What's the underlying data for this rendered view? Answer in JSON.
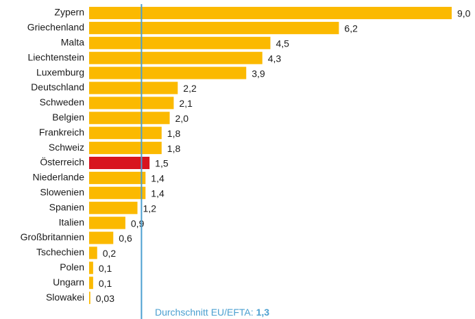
{
  "chart_data": {
    "type": "bar",
    "orientation": "horizontal",
    "categories": [
      "Zypern",
      "Griechenland",
      "Malta",
      "Liechtenstein",
      "Luxemburg",
      "Deutschland",
      "Schweden",
      "Belgien",
      "Frankreich",
      "Schweiz",
      "Österreich",
      "Niederlande",
      "Slowenien",
      "Spanien",
      "Italien",
      "Großbritannien",
      "Tschechien",
      "Polen",
      "Ungarn",
      "Slowakei"
    ],
    "values": [
      9.0,
      6.2,
      4.5,
      4.3,
      3.9,
      2.2,
      2.1,
      2.0,
      1.8,
      1.8,
      1.5,
      1.4,
      1.4,
      1.2,
      0.9,
      0.6,
      0.2,
      0.1,
      0.1,
      0.03
    ],
    "value_labels": [
      "9,0",
      "6,2",
      "4,5",
      "4,3",
      "3,9",
      "2,2",
      "2,1",
      "2,0",
      "1,8",
      "1,8",
      "1,5",
      "1,4",
      "1,4",
      "1,2",
      "0,9",
      "0,6",
      "0,2",
      "0,1",
      "0,1",
      "0,03"
    ],
    "colors": [
      "#fbb900",
      "#fbb900",
      "#fbb900",
      "#fbb900",
      "#fbb900",
      "#fbb900",
      "#fbb900",
      "#fbb900",
      "#fbb900",
      "#fbb900",
      "#d8141f",
      "#fbb900",
      "#fbb900",
      "#fbb900",
      "#fbb900",
      "#fbb900",
      "#fbb900",
      "#fbb900",
      "#fbb900",
      "#fbb900"
    ],
    "xlim": [
      0,
      9
    ],
    "reference_line": {
      "value": 1.3,
      "label": "Durchschnitt EU/EFTA:",
      "value_label": "1,3",
      "color": "#4a9fd0"
    }
  }
}
